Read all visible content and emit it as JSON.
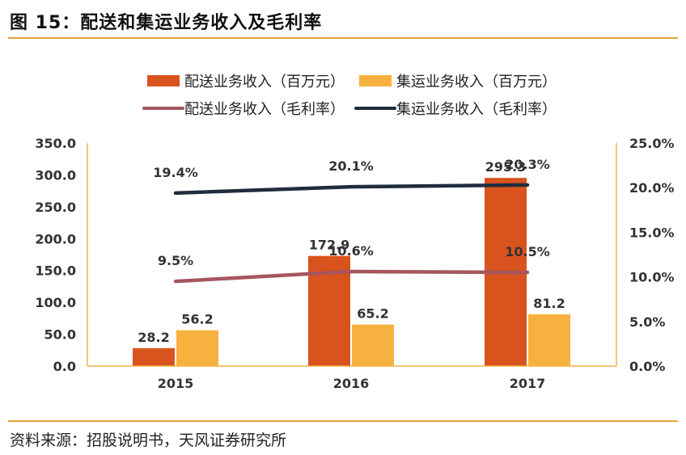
{
  "figure": {
    "title": "图 15：配送和集运业务收入及毛利率",
    "source": "资料来源：招股说明书，天风证券研究所"
  },
  "chart_data": {
    "type": "bar",
    "categories": [
      "2015",
      "2016",
      "2017"
    ],
    "left_axis": {
      "min": 0,
      "max": 350,
      "ticks": [
        "0.0",
        "50.0",
        "100.0",
        "150.0",
        "200.0",
        "250.0",
        "300.0",
        "350.0"
      ]
    },
    "right_axis": {
      "min": 0,
      "max": 25,
      "ticks": [
        "0.0%",
        "5.0%",
        "10.0%",
        "15.0%",
        "20.0%",
        "25.0%"
      ]
    },
    "bar_series": [
      {
        "name": "配送业务收入（百万元）",
        "color": "#d9531e",
        "values": [
          28.2,
          172.9,
          295.3
        ],
        "labels": [
          "28.2",
          "172.9",
          "295.3"
        ]
      },
      {
        "name": "集运业务收入（百万元）",
        "color": "#f7b13e",
        "values": [
          56.2,
          65.2,
          81.2
        ],
        "labels": [
          "56.2",
          "65.2",
          "81.2"
        ]
      }
    ],
    "line_series": [
      {
        "name": "配送业务收入（毛利率）",
        "color": "#a5565e",
        "values": [
          9.5,
          10.6,
          10.5
        ],
        "labels": [
          "9.5%",
          "10.6%",
          "10.5%"
        ]
      },
      {
        "name": "集运业务收入（毛利率）",
        "color": "#1f2d3d",
        "values": [
          19.4,
          20.1,
          20.3
        ],
        "labels": [
          "19.4%",
          "20.1%",
          "20.3%"
        ]
      }
    ],
    "axis_color": "#f2b445",
    "legend_position": "top"
  }
}
